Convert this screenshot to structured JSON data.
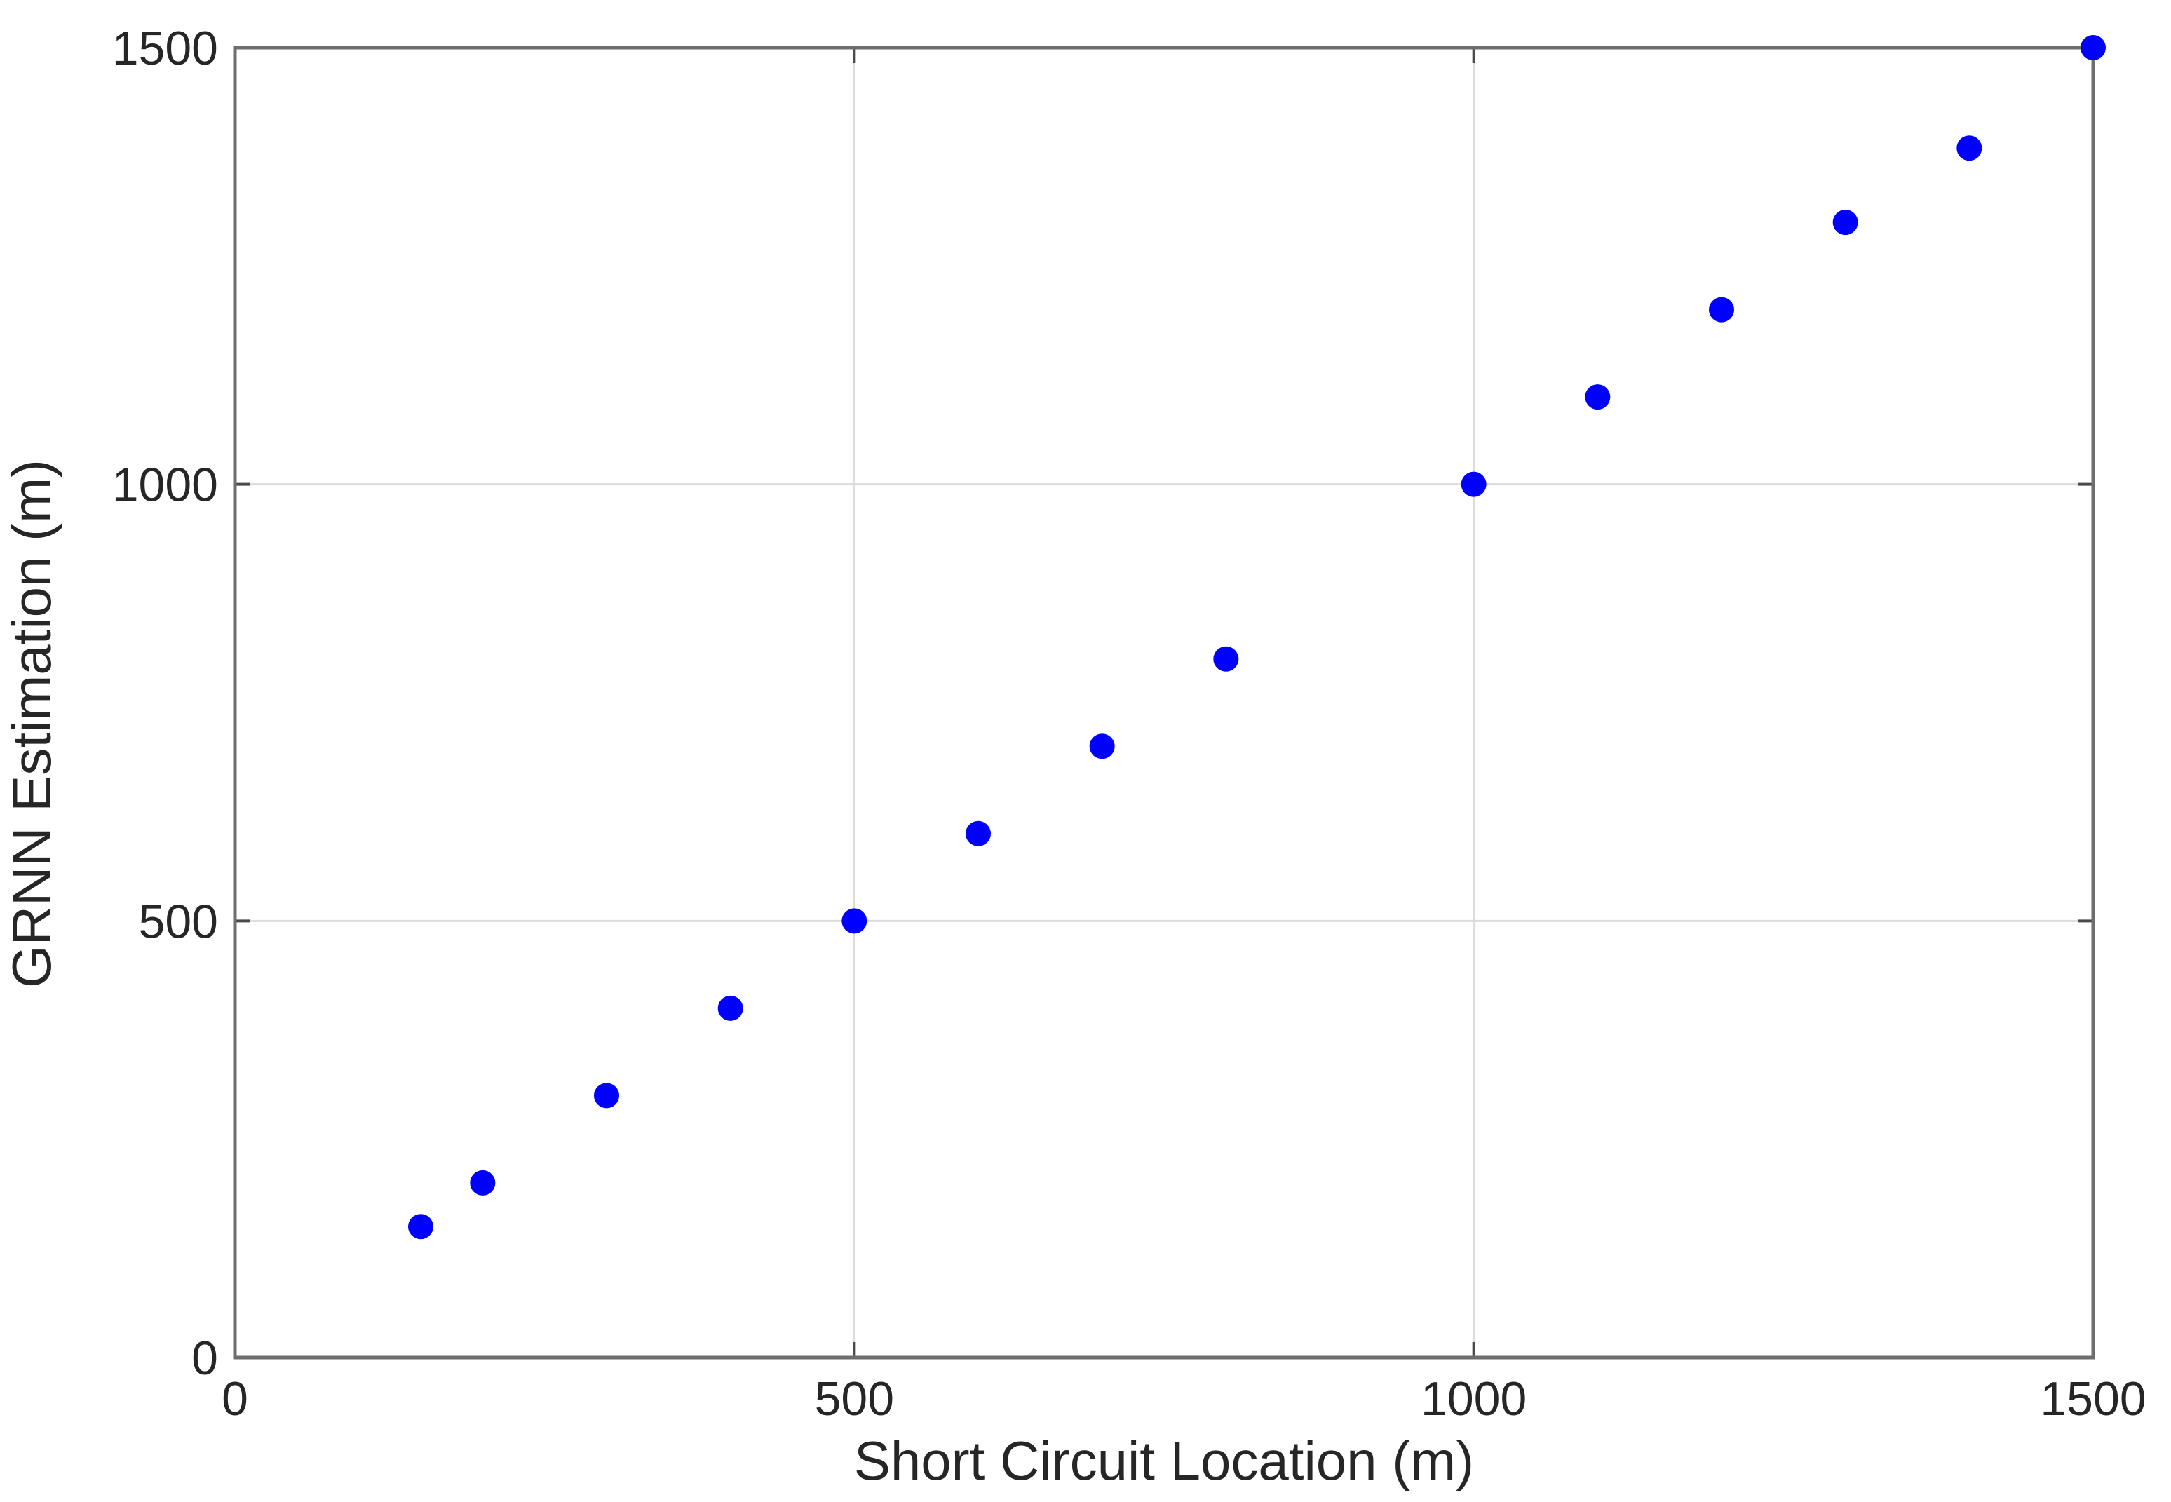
{
  "chart_data": {
    "type": "scatter",
    "title": "",
    "xlabel": "Short Circuit Location (m)",
    "ylabel": "GRNN Estimation (m)",
    "xlim": [
      0,
      1500
    ],
    "ylim": [
      0,
      1500
    ],
    "xticks": [
      0,
      500,
      1000,
      1500
    ],
    "yticks": [
      0,
      500,
      1000,
      1500
    ],
    "grid": true,
    "legend": "none",
    "marker_color": "#0000ff",
    "series": [
      {
        "points": [
          {
            "x": 150,
            "y": 150
          },
          {
            "x": 200,
            "y": 200
          },
          {
            "x": 300,
            "y": 300
          },
          {
            "x": 400,
            "y": 400
          },
          {
            "x": 500,
            "y": 500
          },
          {
            "x": 600,
            "y": 600
          },
          {
            "x": 700,
            "y": 700
          },
          {
            "x": 800,
            "y": 800
          },
          {
            "x": 1000,
            "y": 1000
          },
          {
            "x": 1100,
            "y": 1100
          },
          {
            "x": 1200,
            "y": 1200
          },
          {
            "x": 1300,
            "y": 1300
          },
          {
            "x": 1400,
            "y": 1385
          },
          {
            "x": 1500,
            "y": 1500
          }
        ]
      }
    ]
  }
}
